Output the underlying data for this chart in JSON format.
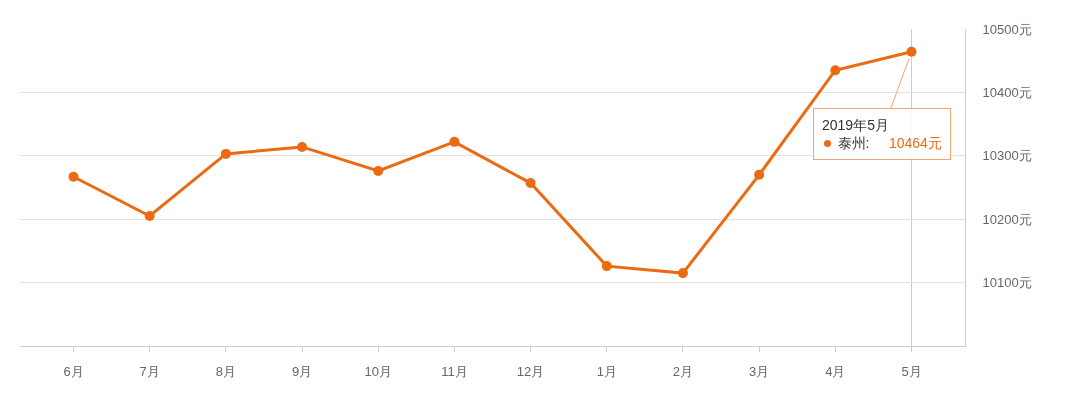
{
  "chart_data": {
    "type": "line",
    "categories": [
      "6月",
      "7月",
      "8月",
      "9月",
      "10月",
      "11月",
      "12月",
      "1月",
      "2月",
      "3月",
      "4月",
      "5月"
    ],
    "series": [
      {
        "name": "泰州:",
        "color": "#ec6b12",
        "values": [
          10267,
          10205,
          10303,
          10314,
          10276,
          10322,
          10257,
          10126,
          10115,
          10270,
          10435,
          10464
        ]
      }
    ],
    "ylim": [
      10000,
      10500
    ],
    "yticks": [
      {
        "value": 10100,
        "label": "10100元"
      },
      {
        "value": 10200,
        "label": "10200元"
      },
      {
        "value": 10300,
        "label": "10300元"
      },
      {
        "value": 10400,
        "label": "10400元"
      },
      {
        "value": 10500,
        "label": "10500元"
      }
    ],
    "grid": "y",
    "marker": "circle",
    "ref_lines": [
      {
        "axis": "x",
        "value": "5月",
        "color": "#cccccc"
      }
    ],
    "annotations": [
      {
        "text": "2019年5月",
        "x": "5月",
        "y": 10464
      },
      "10464元"
    ]
  }
}
